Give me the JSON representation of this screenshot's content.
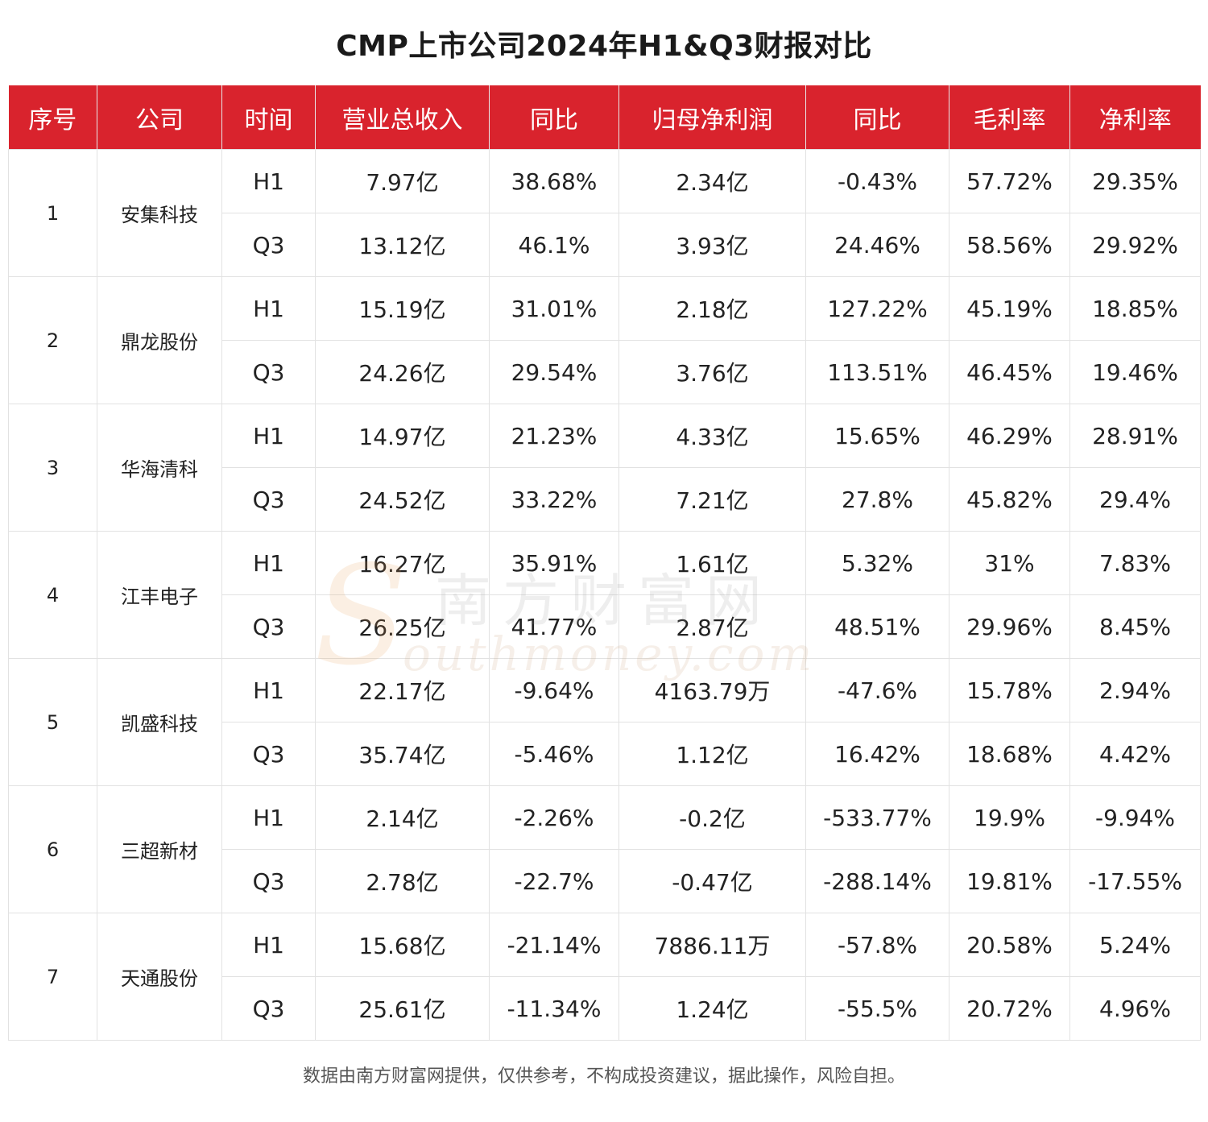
{
  "title": "CMP上市公司2024年H1&Q3财报对比",
  "table": {
    "headers": [
      "序号",
      "公司",
      "时间",
      "营业总收入",
      "同比",
      "归母净利润",
      "同比",
      "毛利率",
      "净利率"
    ],
    "companies": [
      {
        "index": "1",
        "name": "安集科技",
        "rows": [
          {
            "period": "H1",
            "revenue": "7.97亿",
            "revenue_yoy": "38.68%",
            "net_profit": "2.34亿",
            "profit_yoy": "-0.43%",
            "gross_margin": "57.72%",
            "net_margin": "29.35%"
          },
          {
            "period": "Q3",
            "revenue": "13.12亿",
            "revenue_yoy": "46.1%",
            "net_profit": "3.93亿",
            "profit_yoy": "24.46%",
            "gross_margin": "58.56%",
            "net_margin": "29.92%"
          }
        ]
      },
      {
        "index": "2",
        "name": "鼎龙股份",
        "rows": [
          {
            "period": "H1",
            "revenue": "15.19亿",
            "revenue_yoy": "31.01%",
            "net_profit": "2.18亿",
            "profit_yoy": "127.22%",
            "gross_margin": "45.19%",
            "net_margin": "18.85%"
          },
          {
            "period": "Q3",
            "revenue": "24.26亿",
            "revenue_yoy": "29.54%",
            "net_profit": "3.76亿",
            "profit_yoy": "113.51%",
            "gross_margin": "46.45%",
            "net_margin": "19.46%"
          }
        ]
      },
      {
        "index": "3",
        "name": "华海清科",
        "rows": [
          {
            "period": "H1",
            "revenue": "14.97亿",
            "revenue_yoy": "21.23%",
            "net_profit": "4.33亿",
            "profit_yoy": "15.65%",
            "gross_margin": "46.29%",
            "net_margin": "28.91%"
          },
          {
            "period": "Q3",
            "revenue": "24.52亿",
            "revenue_yoy": "33.22%",
            "net_profit": "7.21亿",
            "profit_yoy": "27.8%",
            "gross_margin": "45.82%",
            "net_margin": "29.4%"
          }
        ]
      },
      {
        "index": "4",
        "name": "江丰电子",
        "rows": [
          {
            "period": "H1",
            "revenue": "16.27亿",
            "revenue_yoy": "35.91%",
            "net_profit": "1.61亿",
            "profit_yoy": "5.32%",
            "gross_margin": "31%",
            "net_margin": "7.83%"
          },
          {
            "period": "Q3",
            "revenue": "26.25亿",
            "revenue_yoy": "41.77%",
            "net_profit": "2.87亿",
            "profit_yoy": "48.51%",
            "gross_margin": "29.96%",
            "net_margin": "8.45%"
          }
        ]
      },
      {
        "index": "5",
        "name": "凯盛科技",
        "rows": [
          {
            "period": "H1",
            "revenue": "22.17亿",
            "revenue_yoy": "-9.64%",
            "net_profit": "4163.79万",
            "profit_yoy": "-47.6%",
            "gross_margin": "15.78%",
            "net_margin": "2.94%"
          },
          {
            "period": "Q3",
            "revenue": "35.74亿",
            "revenue_yoy": "-5.46%",
            "net_profit": "1.12亿",
            "profit_yoy": "16.42%",
            "gross_margin": "18.68%",
            "net_margin": "4.42%"
          }
        ]
      },
      {
        "index": "6",
        "name": "三超新材",
        "rows": [
          {
            "period": "H1",
            "revenue": "2.14亿",
            "revenue_yoy": "-2.26%",
            "net_profit": "-0.2亿",
            "profit_yoy": "-533.77%",
            "gross_margin": "19.9%",
            "net_margin": "-9.94%"
          },
          {
            "period": "Q3",
            "revenue": "2.78亿",
            "revenue_yoy": "-22.7%",
            "net_profit": "-0.47亿",
            "profit_yoy": "-288.14%",
            "gross_margin": "19.81%",
            "net_margin": "-17.55%"
          }
        ]
      },
      {
        "index": "7",
        "name": "天通股份",
        "rows": [
          {
            "period": "H1",
            "revenue": "15.68亿",
            "revenue_yoy": "-21.14%",
            "net_profit": "7886.11万",
            "profit_yoy": "-57.8%",
            "gross_margin": "20.58%",
            "net_margin": "5.24%"
          },
          {
            "period": "Q3",
            "revenue": "25.61亿",
            "revenue_yoy": "-11.34%",
            "net_profit": "1.24亿",
            "profit_yoy": "-55.5%",
            "gross_margin": "20.72%",
            "net_margin": "4.96%"
          }
        ]
      }
    ]
  },
  "watermark": {
    "cn": "南方财富网",
    "en": "outhmoney.com",
    "initial": "S"
  },
  "footer": "数据由南方财富网提供，仅供参考，不构成投资建议，据此操作，风险自担。",
  "colors": {
    "header_bg": "#d9232d",
    "header_text": "#ffffff",
    "border": "#e2e2e2"
  }
}
